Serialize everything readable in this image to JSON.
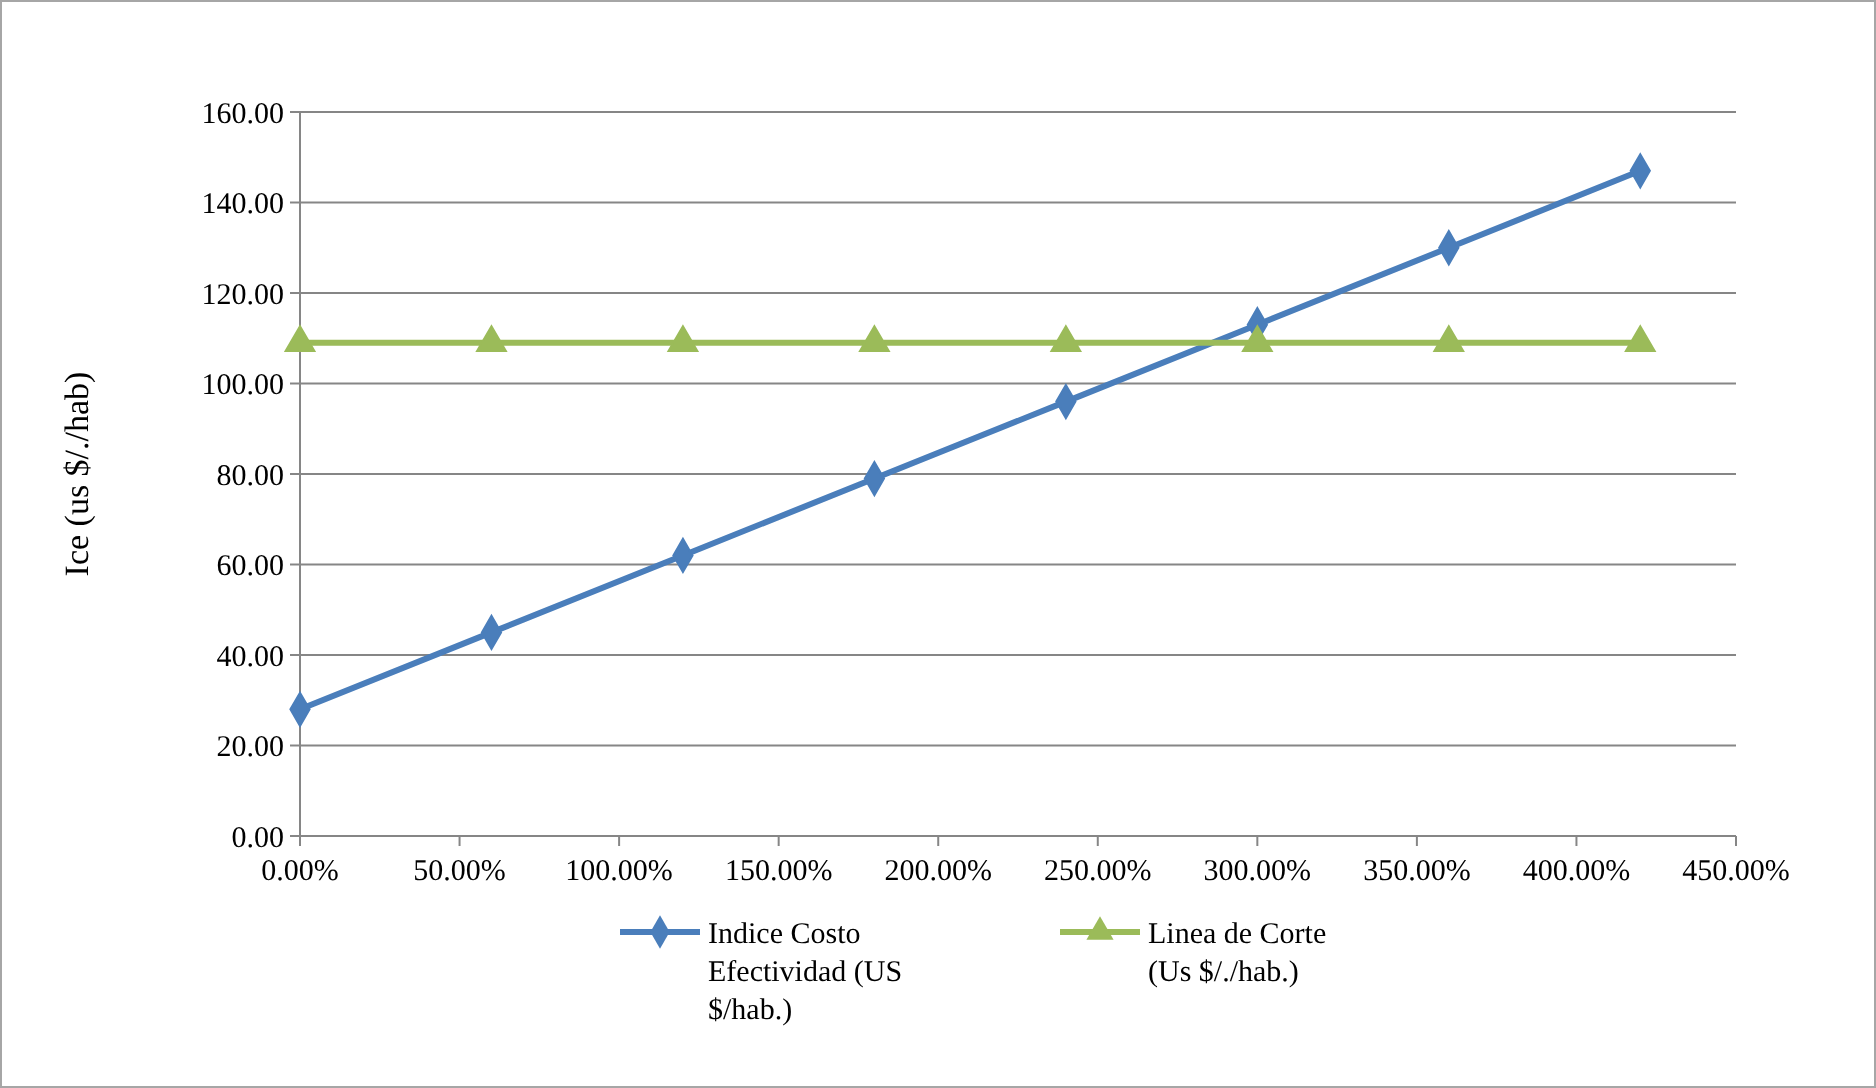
{
  "chart_data": {
    "type": "line",
    "ylabel": "Ice (us $/./hab)",
    "x": [
      0,
      60,
      120,
      180,
      240,
      300,
      360,
      420
    ],
    "series": [
      {
        "name": "Indice Costo Efectividad (US $/hab.)",
        "color": "#4a7ebb",
        "marker": "diamond",
        "values": [
          28,
          45,
          62,
          79,
          96,
          113,
          130,
          147
        ]
      },
      {
        "name": "Linea de Corte (Us $/./hab.)",
        "color": "#9bbb59",
        "marker": "triangle",
        "values": [
          109,
          109,
          109,
          109,
          109,
          109,
          109,
          109
        ]
      }
    ],
    "xlim": [
      0,
      450
    ],
    "xticks": [
      {
        "value": 0,
        "label": "0.00%"
      },
      {
        "value": 50,
        "label": "50.00%"
      },
      {
        "value": 100,
        "label": "100.00%"
      },
      {
        "value": 150,
        "label": "150.00%"
      },
      {
        "value": 200,
        "label": "200.00%"
      },
      {
        "value": 250,
        "label": "250.00%"
      },
      {
        "value": 300,
        "label": "300.00%"
      },
      {
        "value": 350,
        "label": "350.00%"
      },
      {
        "value": 400,
        "label": "400.00%"
      },
      {
        "value": 450,
        "label": "450.00%"
      }
    ],
    "ylim": [
      0,
      160
    ],
    "yticks": [
      {
        "value": 0,
        "label": "0.00"
      },
      {
        "value": 20,
        "label": "20.00"
      },
      {
        "value": 40,
        "label": "40.00"
      },
      {
        "value": 60,
        "label": "60.00"
      },
      {
        "value": 80,
        "label": "80.00"
      },
      {
        "value": 100,
        "label": "100.00"
      },
      {
        "value": 120,
        "label": "120.00"
      },
      {
        "value": 140,
        "label": "140.00"
      },
      {
        "value": 160,
        "label": "160.00"
      }
    ],
    "grid": "y",
    "legend": "bottom",
    "line_style": "solid"
  }
}
